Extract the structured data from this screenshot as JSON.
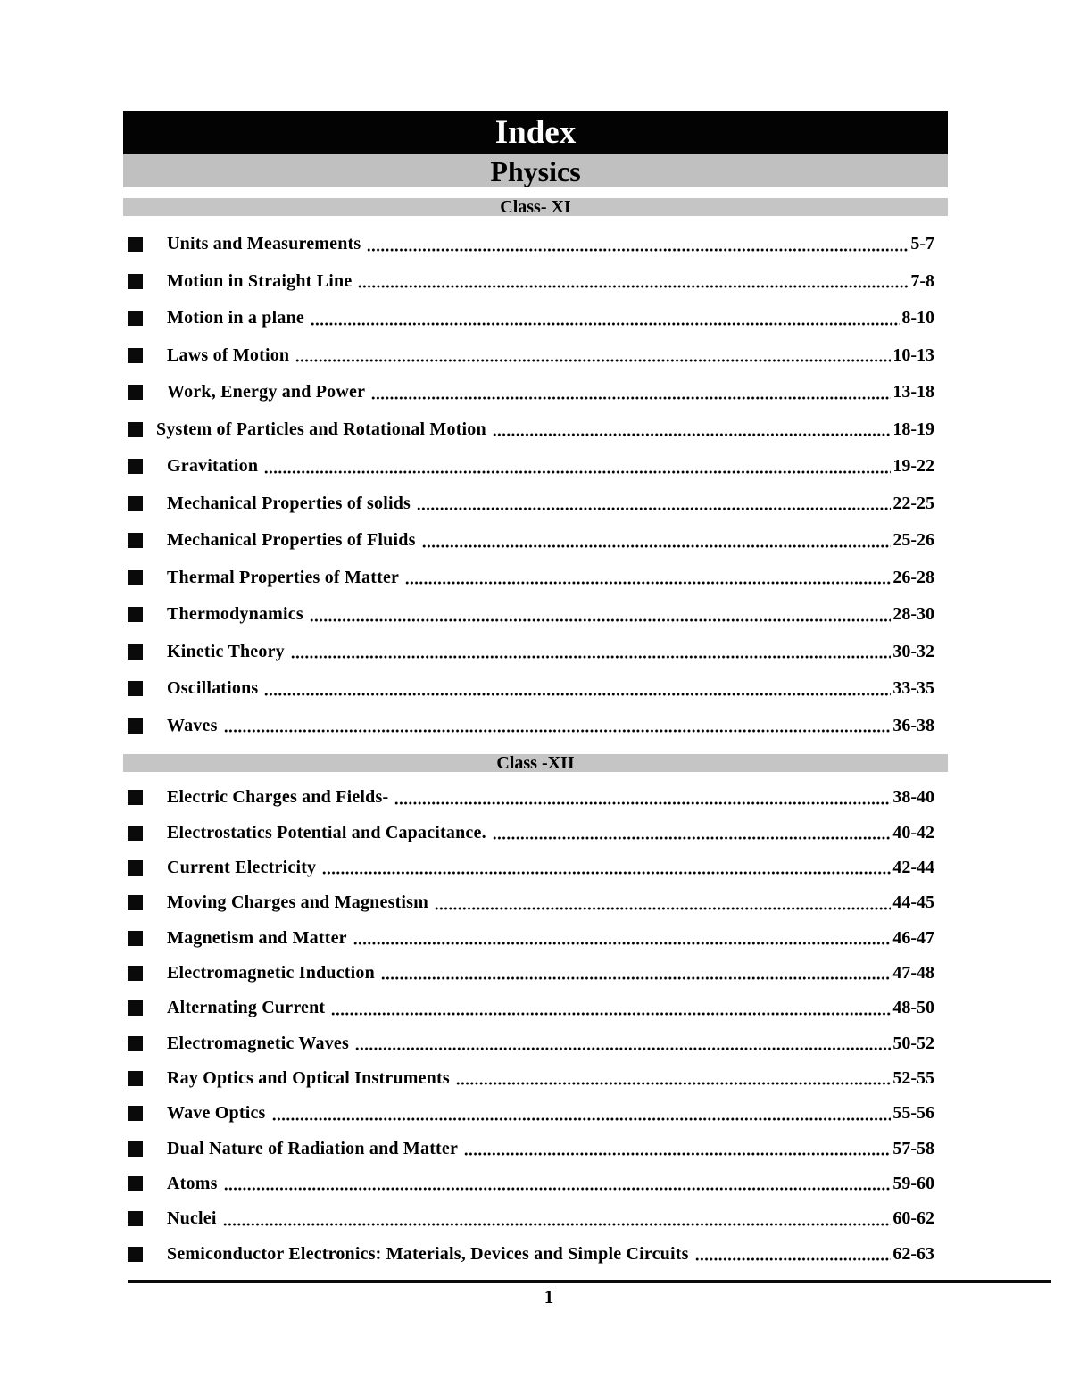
{
  "header": {
    "title": "Index",
    "subject": "Physics"
  },
  "colors": {
    "index_bar_bg": "#000000",
    "index_bar_text": "#ffffff",
    "subject_bar_bg": "#c0c0c0",
    "section_bar_bg": "#c5c5c5",
    "body_text": "#000000"
  },
  "icons": {
    "list_marker": "square-bullet"
  },
  "sections": [
    {
      "label": "Class- XI",
      "items": [
        {
          "title": "Units and Measurements",
          "pages": "5-7"
        },
        {
          "title": "Motion in Straight Line",
          "pages": "7-8"
        },
        {
          "title": "Motion in a plane",
          "pages": "8-10"
        },
        {
          "title": "Laws of Motion",
          "pages": "10-13"
        },
        {
          "title": "Work, Energy and Power",
          "pages": "13-18"
        },
        {
          "title": "System of Particles and Rotational Motion",
          "pages": "18-19",
          "flush": true
        },
        {
          "title": "Gravitation",
          "pages": "19-22"
        },
        {
          "title": "Mechanical Properties of solids",
          "pages": "22-25"
        },
        {
          "title": "Mechanical Properties of Fluids",
          "pages": "25-26"
        },
        {
          "title": "Thermal Properties of Matter",
          "pages": "26-28"
        },
        {
          "title": "Thermodynamics",
          "pages": "28-30"
        },
        {
          "title": "Kinetic Theory",
          "pages": "30-32"
        },
        {
          "title": "Oscillations",
          "pages": "33-35"
        },
        {
          "title": "Waves",
          "pages": "36-38"
        }
      ]
    },
    {
      "label": "Class -XII",
      "items": [
        {
          "title": "Electric Charges and Fields-",
          "pages": "38-40"
        },
        {
          "title": "Electrostatics Potential and Capacitance.",
          "pages": "40-42"
        },
        {
          "title": "Current Electricity",
          "pages": "42-44"
        },
        {
          "title": "Moving Charges and Magnestism",
          "pages": "44-45"
        },
        {
          "title": "Magnetism and Matter",
          "pages": "46-47"
        },
        {
          "title": "Electromagnetic Induction",
          "pages": "47-48"
        },
        {
          "title": "Alternating Current",
          "pages": "48-50"
        },
        {
          "title": "Electromagnetic Waves",
          "pages": "50-52"
        },
        {
          "title": "Ray Optics and Optical Instruments",
          "pages": "52-55"
        },
        {
          "title": "Wave Optics",
          "pages": "55-56"
        },
        {
          "title": "Dual Nature of Radiation and Matter",
          "pages": "57-58"
        },
        {
          "title": "Atoms",
          "pages": "59-60"
        },
        {
          "title": "Nuclei",
          "pages": "60-62"
        },
        {
          "title": "Semiconductor Electronics: Materials, Devices and Simple Circuits",
          "pages": "62-63"
        }
      ]
    }
  ],
  "footer": {
    "page_number": "1"
  }
}
